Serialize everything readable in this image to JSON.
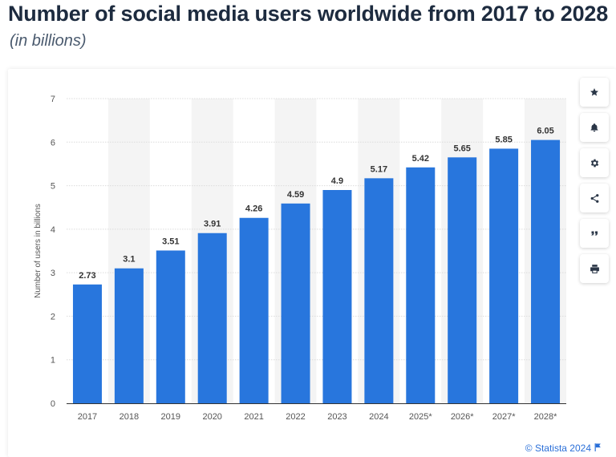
{
  "header": {
    "title": "Number of social media users worldwide from 2017 to 2028",
    "subtitle": "(in billions)"
  },
  "toolbar": {
    "buttons": [
      {
        "name": "star-icon"
      },
      {
        "name": "bell-icon"
      },
      {
        "name": "gear-icon"
      },
      {
        "name": "share-icon"
      },
      {
        "name": "quote-icon"
      },
      {
        "name": "print-icon"
      }
    ]
  },
  "credit": {
    "label": "© Statista 2024",
    "icon": "flag-icon"
  },
  "colors": {
    "bar": "#2876dd",
    "band": "#f4f4f4",
    "grid": "#dcdcdc",
    "axis": "#333333",
    "text": "#555555"
  },
  "chart_data": {
    "type": "bar",
    "title": "",
    "xlabel": "",
    "ylabel": "Number of users in billions",
    "categories": [
      "2017",
      "2018",
      "2019",
      "2020",
      "2021",
      "2022",
      "2023",
      "2024",
      "2025*",
      "2026*",
      "2027*",
      "2028*"
    ],
    "values": [
      2.73,
      3.1,
      3.51,
      3.91,
      4.26,
      4.59,
      4.9,
      5.17,
      5.42,
      5.65,
      5.85,
      6.05
    ],
    "value_labels": [
      "2.73",
      "3.1",
      "3.51",
      "3.91",
      "4.26",
      "4.59",
      "4.9",
      "5.17",
      "5.42",
      "5.65",
      "5.85",
      "6.05"
    ],
    "ylim": [
      0,
      7
    ],
    "yticks": [
      0,
      1,
      2,
      3,
      4,
      5,
      6,
      7
    ],
    "grid": true,
    "legend": "none"
  }
}
